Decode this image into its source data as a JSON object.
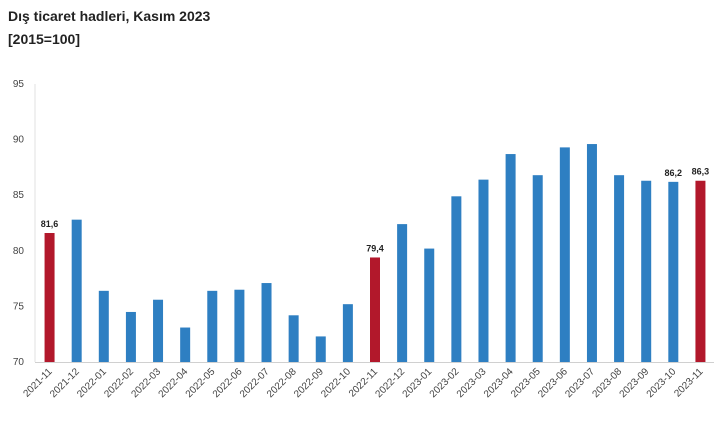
{
  "chart_data": {
    "type": "bar",
    "title": "Dış ticaret hadleri, Kasım 2023",
    "subtitle": "[2015=100]",
    "xlabel": "",
    "ylabel": "",
    "ylim": [
      70,
      95
    ],
    "yticks": [
      70,
      75,
      80,
      85,
      90,
      95
    ],
    "grid": false,
    "categories": [
      "2021-11",
      "2021-12",
      "2022-01",
      "2022-02",
      "2022-03",
      "2022-04",
      "2022-05",
      "2022-06",
      "2022-07",
      "2022-08",
      "2022-09",
      "2022-10",
      "2022-11",
      "2022-12",
      "2023-01",
      "2023-02",
      "2023-03",
      "2023-04",
      "2023-05",
      "2023-06",
      "2023-07",
      "2023-08",
      "2023-09",
      "2023-10",
      "2023-11"
    ],
    "values": [
      81.6,
      82.8,
      76.4,
      74.5,
      75.6,
      73.1,
      76.4,
      76.5,
      77.1,
      74.2,
      72.3,
      75.2,
      79.4,
      82.4,
      80.2,
      84.9,
      86.4,
      88.7,
      86.8,
      89.3,
      89.6,
      86.8,
      86.3,
      86.2,
      86.3
    ],
    "colors": [
      "#b2182b",
      "#2e7fc2",
      "#2e7fc2",
      "#2e7fc2",
      "#2e7fc2",
      "#2e7fc2",
      "#2e7fc2",
      "#2e7fc2",
      "#2e7fc2",
      "#2e7fc2",
      "#2e7fc2",
      "#2e7fc2",
      "#b2182b",
      "#2e7fc2",
      "#2e7fc2",
      "#2e7fc2",
      "#2e7fc2",
      "#2e7fc2",
      "#2e7fc2",
      "#2e7fc2",
      "#2e7fc2",
      "#2e7fc2",
      "#2e7fc2",
      "#2e7fc2",
      "#b2182b"
    ],
    "data_labels": [
      {
        "index": 0,
        "text": "81,6"
      },
      {
        "index": 12,
        "text": "79,4"
      },
      {
        "index": 23,
        "text": "86,2"
      },
      {
        "index": 24,
        "text": "86,3"
      }
    ]
  }
}
